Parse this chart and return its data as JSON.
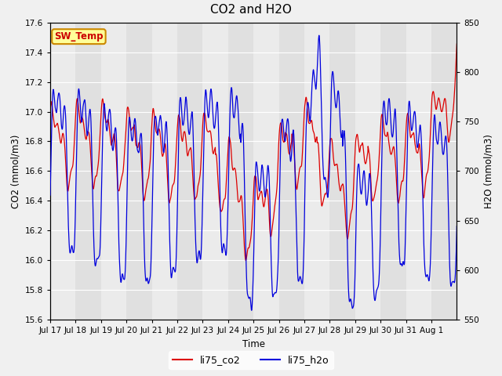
{
  "title": "CO2 and H2O",
  "xlabel": "Time",
  "ylabel_left": "CO2 (mmol/m3)",
  "ylabel_right": "H2O (mmol/m3)",
  "co2_ylim": [
    15.6,
    17.6
  ],
  "h2o_ylim": [
    550,
    850
  ],
  "co2_yticks": [
    15.6,
    15.8,
    16.0,
    16.2,
    16.4,
    16.6,
    16.8,
    17.0,
    17.2,
    17.4,
    17.6
  ],
  "h2o_yticks": [
    550,
    600,
    650,
    700,
    750,
    800,
    850
  ],
  "xtick_labels": [
    "Jul 17",
    "Jul 18",
    "Jul 19",
    "Jul 20",
    "Jul 21",
    "Jul 22",
    "Jul 23",
    "Jul 24",
    "Jul 25",
    "Jul 26",
    "Jul 27",
    "Jul 28",
    "Jul 29",
    "Jul 30",
    "Jul 31",
    "Aug 1"
  ],
  "co2_color": "#dd0000",
  "h2o_color": "#0000dd",
  "legend_labels": [
    "li75_co2",
    "li75_h2o"
  ],
  "annotation_text": "SW_Temp",
  "annotation_facecolor": "#ffff99",
  "annotation_edgecolor": "#cc8800",
  "annotation_textcolor": "#cc0000",
  "fig_facecolor": "#f0f0f0",
  "plot_facecolor": "#e0e0e0",
  "band_light": "#ebebeb",
  "grid_color": "#ffffff",
  "title_fontsize": 11
}
